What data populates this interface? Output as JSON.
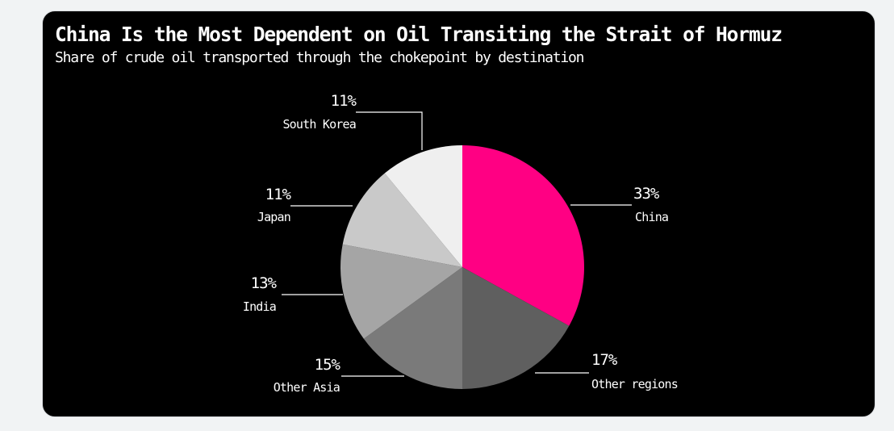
{
  "page": {
    "title": "China Is the Most Dependent on Oil Transiting the Strait of Hormuz",
    "subtitle": "Share of crude oil transported through the chokepoint by destination"
  },
  "chart_data": {
    "type": "pie",
    "title": "China Is the Most Dependent on Oil Transiting the Strait of Hormuz",
    "subtitle": "Share of crude oil transported through the chokepoint by destination",
    "unit": "%",
    "start": "12 o'clock",
    "direction": "clockwise",
    "slices": [
      {
        "label": "China",
        "value": 33,
        "value_label": "33%",
        "color": "#ff0083"
      },
      {
        "label": "Other regions",
        "value": 17,
        "value_label": "17%",
        "color": "#5f5f5f"
      },
      {
        "label": "Other Asia",
        "value": 15,
        "value_label": "15%",
        "color": "#7a7a7a"
      },
      {
        "label": "India",
        "value": 13,
        "value_label": "13%",
        "color": "#a5a5a5"
      },
      {
        "label": "Japan",
        "value": 11,
        "value_label": "11%",
        "color": "#c9c9c9"
      },
      {
        "label": "South Korea",
        "value": 11,
        "value_label": "11%",
        "color": "#efefef"
      }
    ]
  }
}
